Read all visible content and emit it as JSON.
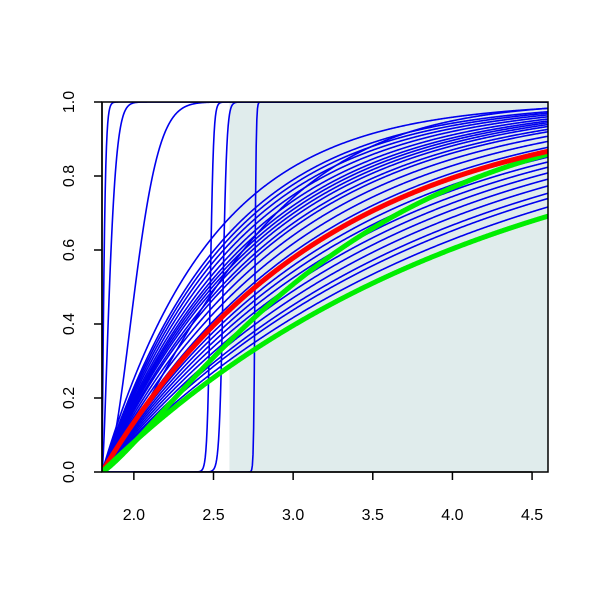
{
  "chart_data": {
    "type": "line",
    "title": "",
    "xlabel": "",
    "ylabel": "",
    "xlim": [
      1.8,
      4.6
    ],
    "ylim": [
      0,
      1
    ],
    "grid": false,
    "legend": "none",
    "x_ticks": [
      "2.0",
      "2.5",
      "3.0",
      "3.5",
      "4.0",
      "4.5"
    ],
    "y_ticks": [
      "0.0",
      "0.2",
      "0.4",
      "0.6",
      "0.8",
      "1.0"
    ],
    "shaded_region": {
      "x_from": 2.6,
      "x_to": 4.6,
      "color": "#e0ecec"
    },
    "colors": {
      "samples": "#0000ee",
      "median": "#ff0000",
      "bounds": "#00ee00"
    },
    "sample_curves": [
      {
        "kind": "exp",
        "x0": 1.8,
        "k": 0.45
      },
      {
        "kind": "exp",
        "x0": 1.8,
        "k": 0.48
      },
      {
        "kind": "exp",
        "x0": 1.8,
        "k": 0.5
      },
      {
        "kind": "exp",
        "x0": 1.8,
        "k": 0.53
      },
      {
        "kind": "exp",
        "x0": 1.8,
        "k": 0.56
      },
      {
        "kind": "exp",
        "x0": 1.8,
        "k": 0.59
      },
      {
        "kind": "exp",
        "x0": 1.8,
        "k": 0.62
      },
      {
        "kind": "exp",
        "x0": 1.8,
        "k": 0.65
      },
      {
        "kind": "exp",
        "x0": 1.8,
        "k": 0.68
      },
      {
        "kind": "exp",
        "x0": 1.8,
        "k": 0.72
      },
      {
        "kind": "exp",
        "x0": 1.8,
        "k": 0.75
      },
      {
        "kind": "exp",
        "x0": 1.8,
        "k": 0.8
      },
      {
        "kind": "exp",
        "x0": 1.8,
        "k": 0.85
      },
      {
        "kind": "exp",
        "x0": 1.8,
        "k": 0.9
      },
      {
        "kind": "exp",
        "x0": 1.8,
        "k": 0.93
      },
      {
        "kind": "exp",
        "x0": 1.8,
        "k": 0.97
      },
      {
        "kind": "exp",
        "x0": 1.8,
        "k": 1.0
      },
      {
        "kind": "exp",
        "x0": 1.8,
        "k": 1.03
      },
      {
        "kind": "exp",
        "x0": 1.8,
        "k": 1.06
      },
      {
        "kind": "exp",
        "x0": 1.8,
        "k": 1.1
      },
      {
        "kind": "exp",
        "x0": 1.8,
        "k": 1.15
      },
      {
        "kind": "exp",
        "x0": 1.8,
        "k": 1.2
      },
      {
        "kind": "exp",
        "x0": 1.8,
        "k": 1.25
      },
      {
        "kind": "exp",
        "x0": 1.8,
        "k": 1.3
      },
      {
        "kind": "exp",
        "x0": 1.8,
        "k": 1.45
      },
      {
        "kind": "weibull",
        "x0": 1.8,
        "scale": 0.95,
        "shape": 1.3
      },
      {
        "kind": "weibull",
        "x0": 1.8,
        "scale": 0.06,
        "shape": 1.5
      },
      {
        "kind": "weibull",
        "x0": 1.8,
        "scale": 0.25,
        "shape": 2.0
      },
      {
        "kind": "weibull",
        "x0": 1.8,
        "scale": 0.015,
        "shape": 1.2
      },
      {
        "kind": "logistic",
        "mid": 2.48,
        "s": 0.01
      },
      {
        "kind": "logistic",
        "mid": 2.56,
        "s": 0.012
      },
      {
        "kind": "logistic",
        "mid": 2.76,
        "s": 0.004
      }
    ],
    "highlight_curves": [
      {
        "name": "upper",
        "role": "bounds",
        "kind": "weibull",
        "x0": 1.8,
        "scale": 1.6,
        "shape": 1.2
      },
      {
        "name": "median",
        "role": "median",
        "kind": "exp",
        "x0": 1.8,
        "k": 0.72
      },
      {
        "name": "lower",
        "role": "bounds",
        "kind": "exp",
        "x0": 1.8,
        "k": 0.42
      }
    ]
  }
}
